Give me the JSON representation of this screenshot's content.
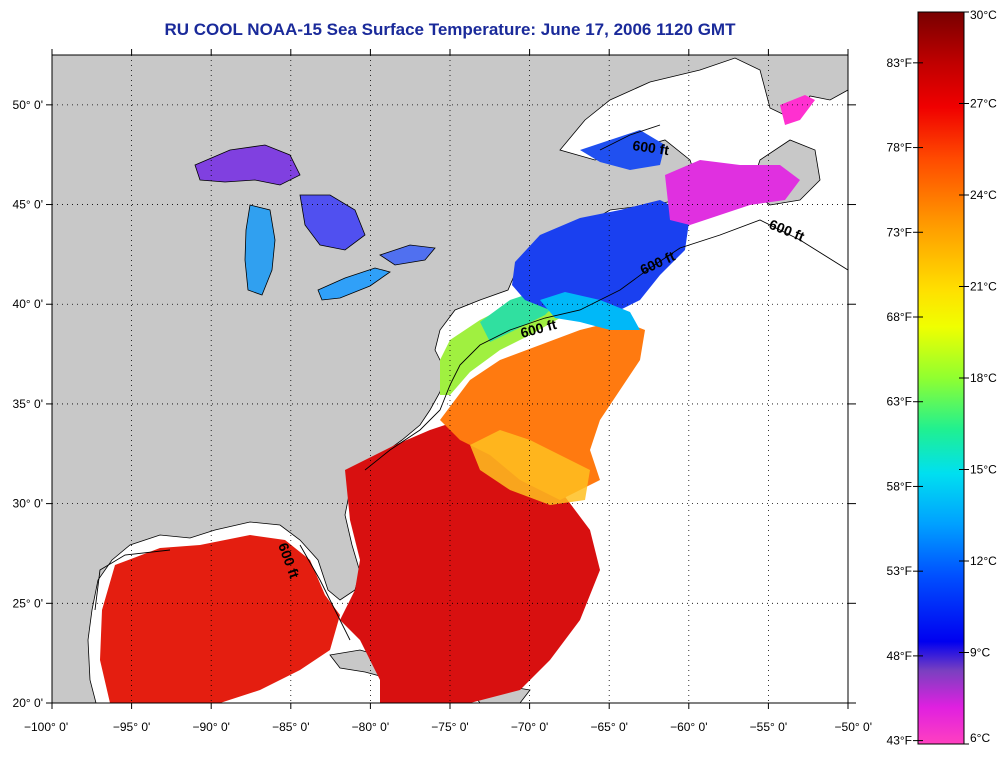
{
  "title": "RU COOL  NOAA-15  Sea Surface Temperature:  June 17, 2006 1120 GMT",
  "map": {
    "lon_range": [
      -100,
      -50
    ],
    "lat_range": [
      20,
      52.5
    ],
    "x_ticks": [
      "−100° 0'",
      "−95° 0'",
      "−90° 0'",
      "−85° 0'",
      "−80° 0'",
      "−75° 0'",
      "−70° 0'",
      "−65° 0'",
      "−60° 0'",
      "−55° 0'",
      "−50° 0'"
    ],
    "y_ticks": [
      "50° 0'",
      "45° 0'",
      "40° 0'",
      "35° 0'",
      "30° 0'",
      "25° 0'",
      "20° 0'"
    ],
    "x_tick_values": [
      -100,
      -95,
      -90,
      -85,
      -80,
      -75,
      -70,
      -65,
      -60,
      -55,
      -50
    ],
    "y_tick_values": [
      50,
      45,
      40,
      35,
      30,
      25,
      20
    ],
    "land_color": "#c8c8c8",
    "no_data_color": "#ffffff",
    "contour_label": "600 ft",
    "contour_label_count": 5
  },
  "colorbar": {
    "celsius_labels": [
      "30°C",
      "27°C",
      "24°C",
      "21°C",
      "18°C",
      "15°C",
      "12°C",
      "9°C",
      "6°C"
    ],
    "fahrenheit_labels": [
      "83°F",
      "78°F",
      "73°F",
      "68°F",
      "63°F",
      "58°F",
      "53°F",
      "48°F",
      "43°F"
    ],
    "celsius_values": [
      30,
      27,
      24,
      21,
      18,
      15,
      12,
      9,
      6
    ],
    "fahrenheit_values": [
      83,
      78,
      73,
      68,
      63,
      58,
      53,
      48,
      43
    ],
    "range_c": [
      6,
      30
    ],
    "gradient": [
      "#780000",
      "#d40000",
      "#ff3000",
      "#ff8a00",
      "#ffd000",
      "#ffff00",
      "#a0ff20",
      "#30f060",
      "#00e8d0",
      "#00a8ff",
      "#0050ff",
      "#0000ff",
      "#8040c8",
      "#ff00e0",
      "#ff40c0"
    ]
  }
}
